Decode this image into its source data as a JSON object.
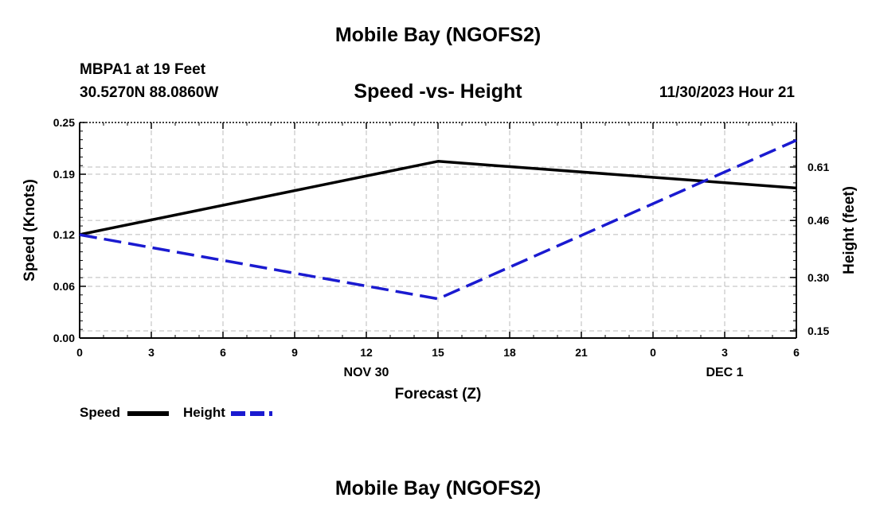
{
  "header": {
    "title": "Mobile Bay (NGOFS2)",
    "station": "MBPA1 at 19 Feet",
    "coords": "30.5270N  88.0860W",
    "subtitle": "Speed -vs- Height",
    "datetime": "11/30/2023 Hour 21"
  },
  "footer": {
    "title": "Mobile Bay (NGOFS2)"
  },
  "chart_data": {
    "type": "line",
    "xlabel": "Forecast (Z)",
    "ylabel": "Speed (Knots)",
    "y2label": "Height (feet)",
    "x_tick_labels": [
      "0",
      "3",
      "6",
      "9",
      "12",
      "15",
      "18",
      "21",
      "0",
      "3",
      "6"
    ],
    "date_labels": [
      {
        "label": "NOV 30",
        "at_tick": 4
      },
      {
        "label": "DEC 1",
        "at_tick": 9
      }
    ],
    "xlim": [
      0,
      30
    ],
    "ylim": [
      0,
      0.25
    ],
    "y_ticks": [
      0.0,
      0.06,
      0.12,
      0.19,
      0.25
    ],
    "y_tick_labels": [
      "0.00",
      "0.06",
      "0.12",
      "0.19",
      "0.25"
    ],
    "y2lim": [
      0.13,
      0.735
    ],
    "y2_ticks": [
      0.15,
      0.3,
      0.46,
      0.61
    ],
    "y2_tick_labels": [
      "0.15",
      "0.30",
      "0.46",
      "0.61"
    ],
    "grid": true,
    "series": [
      {
        "name": "Speed",
        "axis": "left",
        "color": "#000000",
        "style": "solid",
        "x": [
          0,
          15,
          30
        ],
        "y": [
          0.12,
          0.205,
          0.174
        ]
      },
      {
        "name": "Height",
        "axis": "right",
        "color": "#1a1ad0",
        "style": "dashed",
        "x": [
          0,
          15,
          30
        ],
        "y": [
          0.42,
          0.24,
          0.685
        ]
      }
    ]
  }
}
